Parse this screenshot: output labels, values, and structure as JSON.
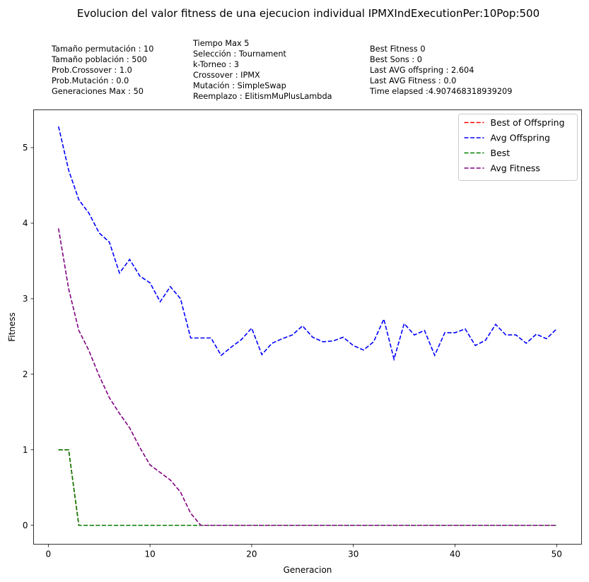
{
  "chart_data": {
    "type": "line",
    "title": "Evolucion del valor fitness de una ejecucion individual IPMXIndExecutionPer:10Pop:500",
    "xlabel": "Generacion",
    "ylabel": "Fitness",
    "xlim": [
      -1.45,
      52.45
    ],
    "ylim": [
      -0.25,
      5.5
    ],
    "xticks": [
      0,
      10,
      20,
      30,
      40,
      50
    ],
    "yticks": [
      0,
      1,
      2,
      3,
      4,
      5
    ],
    "x": [
      1,
      2,
      3,
      4,
      5,
      6,
      7,
      8,
      9,
      10,
      11,
      12,
      13,
      14,
      15,
      16,
      17,
      18,
      19,
      20,
      21,
      22,
      23,
      24,
      25,
      26,
      27,
      28,
      29,
      30,
      31,
      32,
      33,
      34,
      35,
      36,
      37,
      38,
      39,
      40,
      41,
      42,
      43,
      44,
      45,
      46,
      47,
      48,
      49,
      50
    ],
    "series": [
      {
        "name": "Best of Offspring",
        "color": "#ff0000",
        "linestyle": "dashed",
        "values": [
          1,
          1,
          0,
          0,
          0,
          0,
          0,
          0,
          0,
          0,
          0,
          0,
          0,
          0,
          0,
          0,
          0,
          0,
          0,
          0,
          0,
          0,
          0,
          0,
          0,
          0,
          0,
          0,
          0,
          0,
          0,
          0,
          0,
          0,
          0,
          0,
          0,
          0,
          0,
          0,
          0,
          0,
          0,
          0,
          0,
          0,
          0,
          0,
          0,
          0
        ]
      },
      {
        "name": "Avg Offspring",
        "color": "#0000ff",
        "linestyle": "dashed",
        "values": [
          5.28,
          4.7,
          4.31,
          4.13,
          3.87,
          3.75,
          3.34,
          3.52,
          3.3,
          3.21,
          2.96,
          3.16,
          3.0,
          2.48,
          2.48,
          2.48,
          2.25,
          2.36,
          2.46,
          2.61,
          2.26,
          2.41,
          2.47,
          2.52,
          2.64,
          2.49,
          2.43,
          2.44,
          2.49,
          2.38,
          2.32,
          2.43,
          2.73,
          2.2,
          2.67,
          2.52,
          2.58,
          2.25,
          2.55,
          2.55,
          2.6,
          2.38,
          2.45,
          2.66,
          2.52,
          2.52,
          2.41,
          2.53,
          2.47,
          2.6
        ]
      },
      {
        "name": "Best",
        "color": "#008000",
        "linestyle": "dashed",
        "values": [
          1,
          1,
          0,
          0,
          0,
          0,
          0,
          0,
          0,
          0,
          0,
          0,
          0,
          0,
          0,
          0,
          0,
          0,
          0,
          0,
          0,
          0,
          0,
          0,
          0,
          0,
          0,
          0,
          0,
          0,
          0,
          0,
          0,
          0,
          0,
          0,
          0,
          0,
          0,
          0,
          0,
          0,
          0,
          0,
          0,
          0,
          0,
          0,
          0,
          0
        ]
      },
      {
        "name": "Avg Fitness",
        "color": "#800080",
        "linestyle": "dashed",
        "values": [
          3.93,
          3.13,
          2.58,
          2.31,
          1.98,
          1.69,
          1.48,
          1.29,
          1.03,
          0.8,
          0.7,
          0.6,
          0.44,
          0.16,
          0,
          0,
          0,
          0,
          0,
          0,
          0,
          0,
          0,
          0,
          0,
          0,
          0,
          0,
          0,
          0,
          0,
          0,
          0,
          0,
          0,
          0,
          0,
          0,
          0,
          0,
          0,
          0,
          0,
          0,
          0,
          0,
          0,
          0,
          0,
          0
        ]
      }
    ],
    "legend_position": "top-right",
    "grid": false
  },
  "info_columns": [
    [
      "Tamaño permutación : 10",
      "Tamaño población : 500",
      "Prob.Crossover : 1.0",
      "Prob.Mutación : 0.0",
      "Generaciones Max : 50"
    ],
    [
      "Tiempo Max 5",
      "Selección : Tournament",
      "k-Torneo : 3",
      "Crossover : IPMX",
      "Mutación : SimpleSwap",
      "Reemplazo : ElitismMuPlusLambda"
    ],
    [
      "Best Fitness 0",
      "Best Sons : 0",
      "Last AVG offspring : 2.604",
      "Last AVG Fitness : 0.0",
      "Time elapsed :4.907468318939209"
    ]
  ]
}
